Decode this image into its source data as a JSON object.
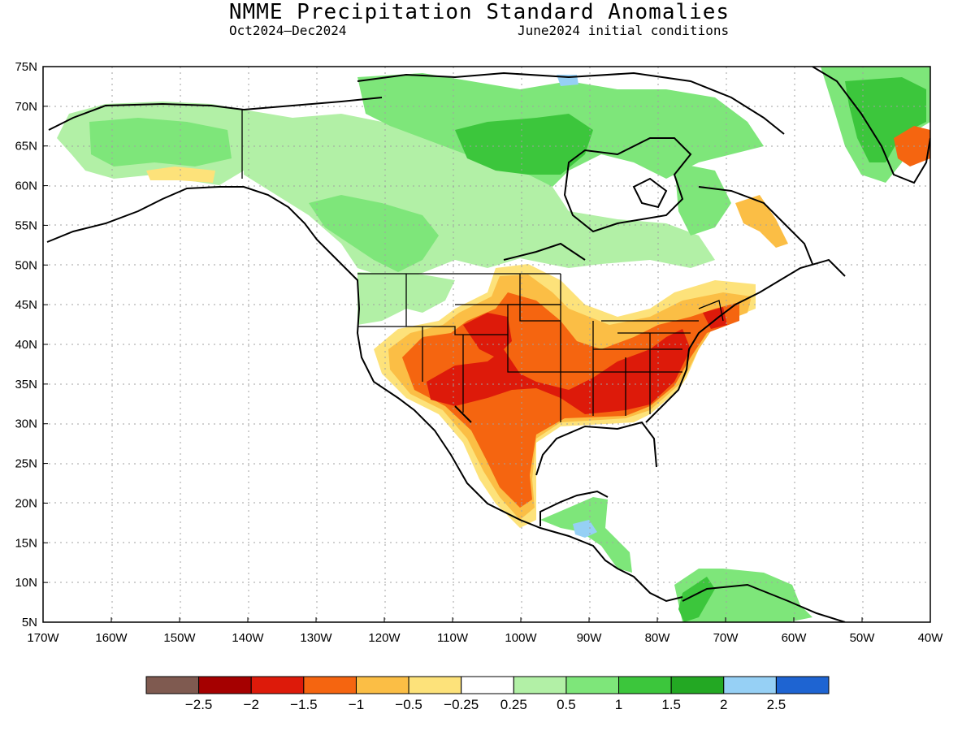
{
  "title": "NMME Precipitation Standard Anomalies",
  "subtitle_period": "Oct2024–Dec2024",
  "subtitle_init": "June2024 initial conditions",
  "lat_labels": [
    "75N",
    "70N",
    "65N",
    "60N",
    "55N",
    "50N",
    "45N",
    "40N",
    "35N",
    "30N",
    "25N",
    "20N",
    "15N",
    "10N",
    "5N"
  ],
  "lon_labels": [
    "170W",
    "160W",
    "150W",
    "140W",
    "130W",
    "120W",
    "110W",
    "100W",
    "90W",
    "80W",
    "70W",
    "60W",
    "50W",
    "40W"
  ],
  "colorbar": {
    "colors": [
      "#7f5a50",
      "#a50000",
      "#dd1a0a",
      "#f56510",
      "#fbbe45",
      "#fde27a",
      "#ffffff",
      "#b2f0a6",
      "#7ee67a",
      "#3cc63c",
      "#23a823",
      "#96d0f5",
      "#1e64d2"
    ],
    "labels": [
      "−2.5",
      "−2",
      "−1.5",
      "−1",
      "−0.5",
      "−0.25",
      "0.25",
      "0.5",
      "1",
      "1.5",
      "2",
      "2.5"
    ]
  },
  "colors": {
    "very_dry": "#a50000",
    "dry_strong": "#dd1a0a",
    "dry": "#f56510",
    "dry_mod": "#fbbe45",
    "dry_weak": "#fde27a",
    "wet_weak": "#b2f0a6",
    "wet": "#7ee67a",
    "wet_mod": "#3cc63c",
    "wet_strong": "#23a823",
    "very_wet": "#96d0f5"
  }
}
